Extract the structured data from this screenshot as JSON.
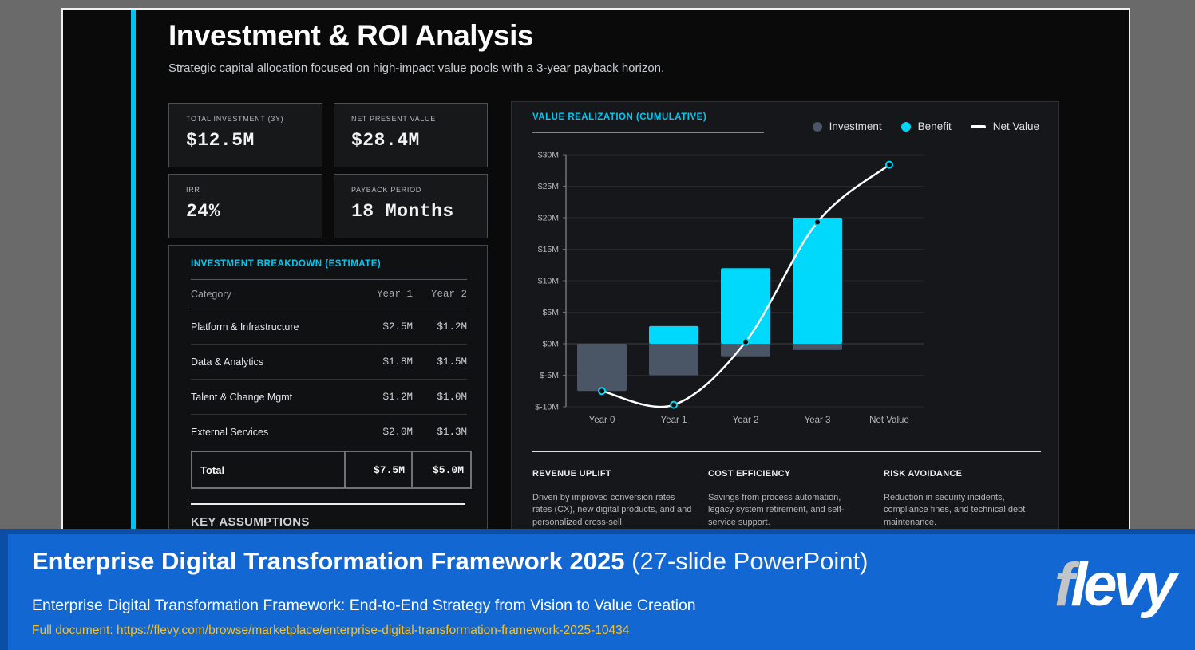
{
  "slide": {
    "title": "Investment & ROI Analysis",
    "subtitle": "Strategic capital allocation focused on high-impact value pools with a 3-year payback horizon.",
    "kpis": [
      {
        "label": "TOTAL INVESTMENT (3Y)",
        "value": "$12.5M"
      },
      {
        "label": "NET PRESENT VALUE",
        "value": "$28.4M"
      },
      {
        "label": "IRR",
        "value": "24%"
      },
      {
        "label": "PAYBACK PERIOD",
        "value": "18 Months"
      }
    ],
    "breakdown": {
      "title": "INVESTMENT BREAKDOWN (ESTIMATE)",
      "columns": [
        "Category",
        "Year 1",
        "Year 2"
      ],
      "rows": [
        {
          "category": "Platform & Infrastructure",
          "year1": "$2.5M",
          "year2": "$1.2M"
        },
        {
          "category": "Data & Analytics",
          "year1": "$1.8M",
          "year2": "$1.5M"
        },
        {
          "category": "Talent & Change Mgmt",
          "year1": "$1.2M",
          "year2": "$1.0M"
        },
        {
          "category": "External Services",
          "year1": "$2.0M",
          "year2": "$1.3M"
        }
      ],
      "total": {
        "category": "Total",
        "year1": "$7.5M",
        "year2": "$5.0M"
      },
      "assumptions_title": "KEY ASSUMPTIONS"
    },
    "value_panel": {
      "title": "VALUE REALIZATION (CUMULATIVE)",
      "legend": [
        {
          "label": "Investment",
          "color": "#4a5566",
          "swatch": "dot"
        },
        {
          "label": "Benefit",
          "color": "#00d5f5",
          "swatch": "dot"
        },
        {
          "label": "Net Value",
          "color": "#ffffff",
          "swatch": "dash"
        }
      ],
      "drivers": [
        {
          "title": "REVENUE UPLIFT",
          "text": "Driven by improved conversion rates rates (CX), new digital products, and and personalized cross-sell."
        },
        {
          "title": "COST EFFICIENCY",
          "text": "Savings from process automation, legacy system retirement, and self-service support."
        },
        {
          "title": "RISK AVOIDANCE",
          "text": "Reduction in security incidents, compliance fines, and technical debt maintenance."
        }
      ]
    }
  },
  "chart_data": {
    "type": "bar",
    "title": "VALUE REALIZATION (CUMULATIVE)",
    "categories": [
      "Year 0",
      "Year 1",
      "Year 2",
      "Year 3",
      "Net Value"
    ],
    "series": [
      {
        "name": "Investment",
        "render": "bar",
        "color": "#4a5566",
        "values": [
          -7.5,
          -5.0,
          -2.0,
          -1.0,
          null
        ]
      },
      {
        "name": "Benefit",
        "render": "bar",
        "color": "#00d9fb",
        "values": [
          null,
          2.8,
          12.0,
          20.0,
          null
        ]
      },
      {
        "name": "Net Value",
        "render": "line",
        "color": "#ffffff",
        "values": [
          -7.5,
          -9.7,
          0.3,
          19.3,
          28.4
        ]
      }
    ],
    "ylim": [
      -10,
      30
    ],
    "ytick_step": 5,
    "ytick_labels": [
      "$30M",
      "$25M",
      "$20M",
      "$15M",
      "$10M",
      "$5M",
      "$0M",
      "$-5M",
      "$-10M"
    ],
    "grid": true,
    "legend_position": "top-right"
  },
  "footer": {
    "title_bold": "Enterprise Digital Transformation Framework 2025",
    "title_light": " (27-slide PowerPoint)",
    "subtitle": "Enterprise Digital Transformation Framework:  End-to-End Strategy from Vision to Value Creation",
    "link": "Full document: https://flevy.com/browse/marketplace/enterprise-digital-transformation-framework-2025-10434",
    "logo_f": "f",
    "logo_rest": "levy"
  },
  "colors": {
    "accent_cyan": "#00c3ee",
    "cyan_heading": "#00c9f2",
    "benefit_bar": "#00d9fb",
    "investment_bar": "#4a5566",
    "banner_blue": "#1267d2",
    "banner_border_blue": "#0c4da5",
    "link_gold": "#f2c230",
    "slide_bg": "#0a0a0b"
  }
}
